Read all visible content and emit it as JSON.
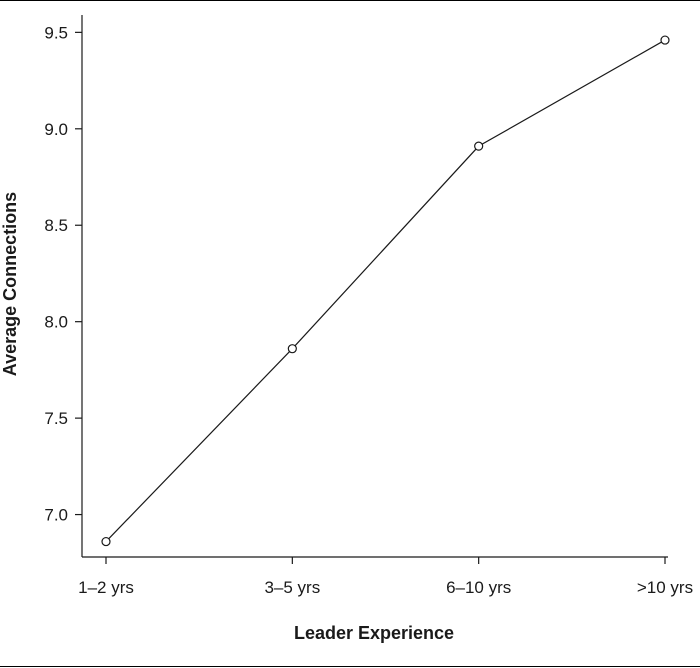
{
  "chart_data": {
    "type": "line",
    "title": "",
    "xlabel": "Leader Experience",
    "ylabel": "Average Connections",
    "categories": [
      "1–2 yrs",
      "3–5 yrs",
      "6–10 yrs",
      ">10 yrs"
    ],
    "series": [
      {
        "values": [
          6.86,
          7.86,
          8.91,
          9.46
        ]
      }
    ],
    "ylim": [
      6.78,
      9.59
    ],
    "yticks": [
      7.0,
      7.5,
      8.0,
      8.5,
      9.0,
      9.5
    ],
    "ytick_labels": [
      "7.0",
      "7.5",
      "8.0",
      "8.5",
      "9.0",
      "9.5"
    ],
    "grid": false,
    "marker": "open-circle",
    "line_color": "#1a1a1a"
  }
}
